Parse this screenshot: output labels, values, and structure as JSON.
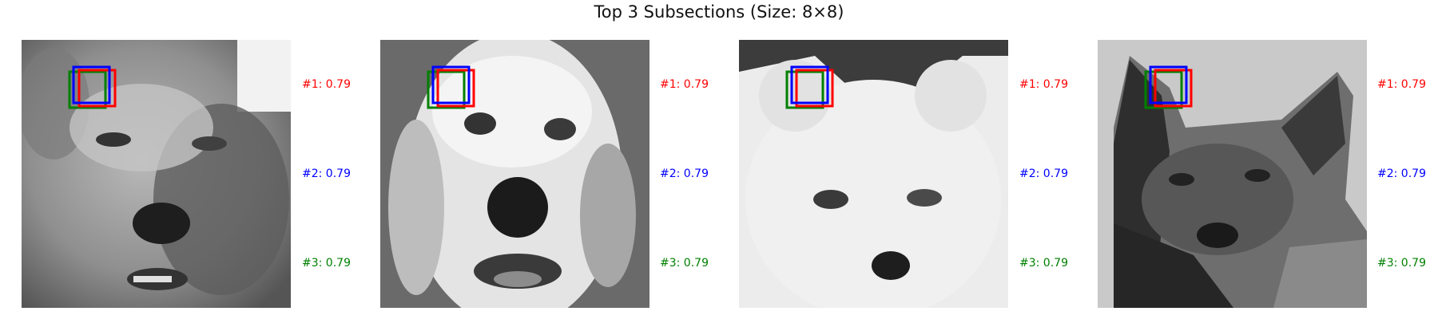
{
  "figure": {
    "title": "Top 3 Subsections (Size: 8×8)"
  },
  "colors": {
    "rank1": "#ff0000",
    "rank2": "#0000ff",
    "rank3": "#008000"
  },
  "panels": [
    {
      "subject": "golden retriever face, grayscale, darker fur on right",
      "scores": [
        {
          "label": "#1: 0.79"
        },
        {
          "label": "#2: 0.79"
        },
        {
          "label": "#3: 0.79"
        }
      ]
    },
    {
      "subject": "light golden retriever face, grayscale",
      "scores": [
        {
          "label": "#1: 0.79"
        },
        {
          "label": "#2: 0.79"
        },
        {
          "label": "#3: 0.79"
        }
      ]
    },
    {
      "subject": "white spitz / samoyed puppy face, dark background top",
      "scores": [
        {
          "label": "#1: 0.79"
        },
        {
          "label": "#2: 0.79"
        },
        {
          "label": "#3: 0.79"
        }
      ]
    },
    {
      "subject": "german shepherd face, dark fur, pointed ears",
      "scores": [
        {
          "label": "#1: 0.79"
        },
        {
          "label": "#2: 0.79"
        },
        {
          "label": "#3: 0.79"
        }
      ]
    }
  ]
}
